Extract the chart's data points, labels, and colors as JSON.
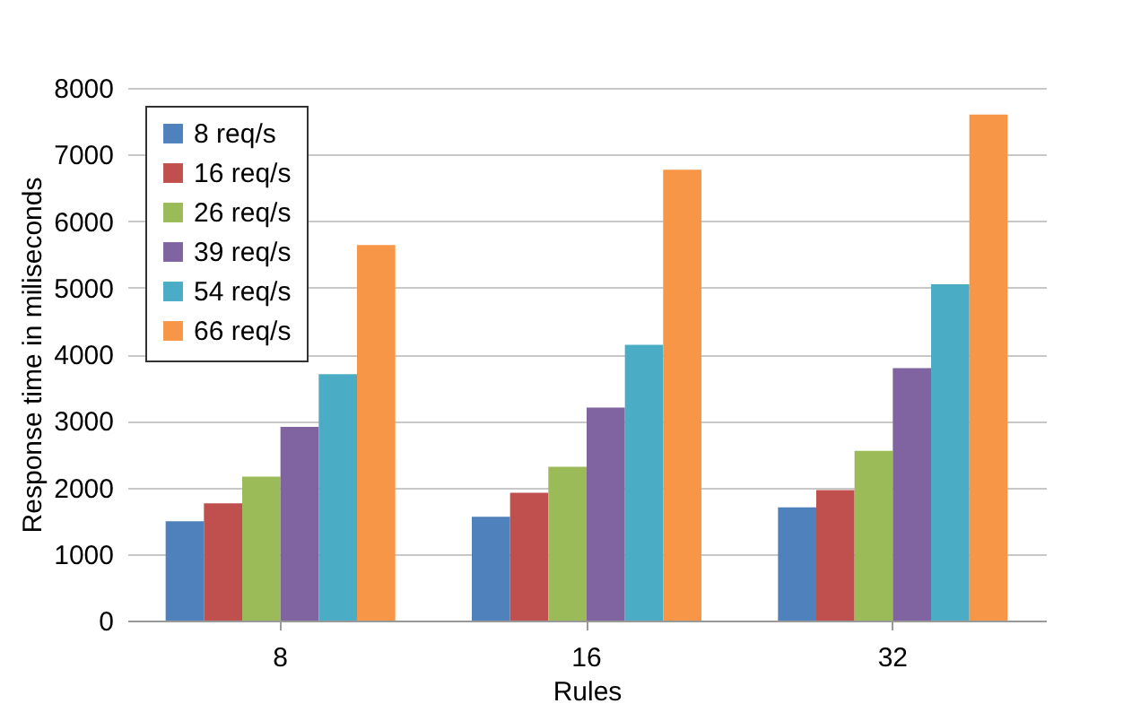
{
  "chart_data": {
    "type": "bar",
    "xlabel": "Rules",
    "ylabel": "Response time in miliseconds",
    "categories": [
      "8",
      "16",
      "32"
    ],
    "series": [
      {
        "name": "8 req/s",
        "color": "#4f81bd",
        "values": [
          1490,
          1560,
          1700
        ]
      },
      {
        "name": "16 req/s",
        "color": "#c0504d",
        "values": [
          1760,
          1920,
          1960
        ]
      },
      {
        "name": "26 req/s",
        "color": "#9bbb59",
        "values": [
          2160,
          2310,
          2550
        ]
      },
      {
        "name": "39 req/s",
        "color": "#8064a2",
        "values": [
          2910,
          3200,
          3790
        ]
      },
      {
        "name": "54 req/s",
        "color": "#4bacc6",
        "values": [
          3700,
          4140,
          5050
        ]
      },
      {
        "name": "66 req/s",
        "color": "#f79646",
        "values": [
          5640,
          6770,
          7600
        ]
      }
    ],
    "ylim": [
      0,
      8000
    ],
    "yticks": [
      0,
      1000,
      2000,
      3000,
      4000,
      5000,
      6000,
      7000,
      8000
    ],
    "grid": "y",
    "legend": "top left"
  }
}
